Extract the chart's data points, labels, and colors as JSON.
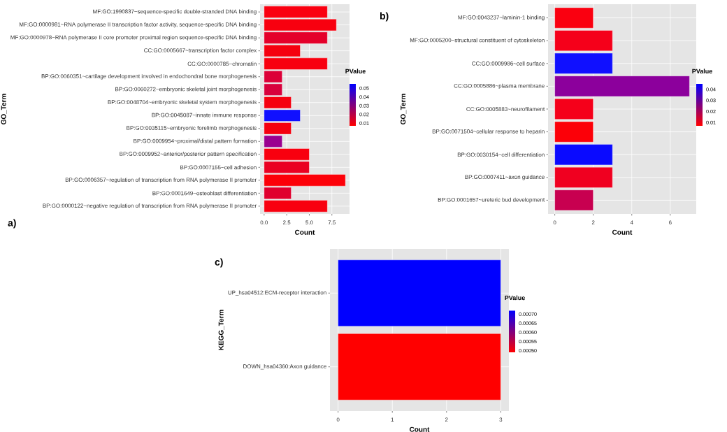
{
  "chart_data": [
    {
      "type": "bar",
      "orientation": "horizontal",
      "title": "a)",
      "xlabel": "Count",
      "ylabel": "GO_Term",
      "clabel": "PValue",
      "categories": [
        "MF:GO:1990837~sequence-specific double-stranded DNA binding",
        "MF:GO:0000981~RNA polymerase II transcription factor activity, sequence-specific DNA binding",
        "MF:GO:0000978~RNA polymerase II core promoter proximal region sequence-specific DNA binding",
        "CC:GO:0005667~transcription factor complex",
        "CC:GO:0000785~chromatin",
        "BP:GO:0060351~cartilage development involved in endochondral bone morphogenesis",
        "BP:GO:0060272~embryonic skeletal joint morphogenesis",
        "BP:GO:0048704~embryonic skeletal system morphogenesis",
        "BP:GO:0045087~innate immune response",
        "BP:GO:0035115~embryonic forelimb morphogenesis",
        "BP:GO:0009954~proximal/distal pattern formation",
        "BP:GO:0009952~anterior/posterior pattern specification",
        "BP:GO:0007155~cell adhesion",
        "BP:GO:0006357~regulation of transcription from RNA polymerase II promoter",
        "BP:GO:0001649~osteoblast differentiation",
        "BP:GO:0000122~negative regulation of transcription from RNA polymerase II promoter"
      ],
      "values": [
        7,
        8,
        7,
        4,
        7,
        2,
        2,
        3,
        4,
        3,
        2,
        5,
        5,
        9,
        3,
        7
      ],
      "colors": [
        "#fa0010",
        "#f8000f",
        "#e4002a",
        "#f5000f",
        "#f8000f",
        "#dc0038",
        "#d8003c",
        "#f5000f",
        "#1010ff",
        "#f5000f",
        "#9a0090",
        "#f8000f",
        "#ea0022",
        "#fc0008",
        "#e0002e",
        "#f8000f"
      ],
      "xlim": [
        -0.45,
        9.45
      ],
      "xticks": [
        {
          "value": 0,
          "label": "0.0"
        },
        2.5,
        {
          "value": 5,
          "label": "5.0"
        },
        7.5
      ],
      "clim": [
        0.007,
        0.055
      ],
      "cticks": [
        0.01,
        0.02,
        0.03,
        0.04,
        0.05
      ],
      "grid": true
    },
    {
      "type": "bar",
      "orientation": "horizontal",
      "title": "b)",
      "xlabel": "Count",
      "ylabel": "GO_Term",
      "clabel": "PValue",
      "categories": [
        "MF:GO:0043237~laminin-1 binding",
        "MF:GO:0005200~structural constituent of cytoskeleton",
        "CC:GO:0009986~cell surface",
        "CC:GO:0005886~plasma membrane",
        "CC:GO:0005883~neurofilament",
        "BP:GO:0071504~cellular response to heparin",
        "BP:GO:0030154~cell differentiation",
        "BP:GO:0007411~axon guidance",
        "BP:GO:0001657~ureteric bud development"
      ],
      "values": [
        2,
        3,
        3,
        7,
        2,
        2,
        3,
        3,
        2
      ],
      "colors": [
        "#fa0010",
        "#f5001a",
        "#1010ff",
        "#8c009c",
        "#f5001a",
        "#fc0008",
        "#0a0aff",
        "#f00020",
        "#c80050"
      ],
      "xlim": [
        -0.35,
        7.35
      ],
      "xticks": [
        0,
        2,
        4,
        6
      ],
      "clim": [
        0.007,
        0.045
      ],
      "cticks": [
        0.01,
        0.02,
        0.03,
        0.04
      ],
      "grid": true
    },
    {
      "type": "bar",
      "orientation": "horizontal",
      "title": "c)",
      "xlabel": "Count",
      "ylabel": "KEGG_Term",
      "clabel": "PValue",
      "categories": [
        "UP_hsa04512:ECM-receptor interaction",
        "DOWN_hsa04360:Axon guidance"
      ],
      "values": [
        3,
        3
      ],
      "colors": [
        "#0000ff",
        "#ff0000"
      ],
      "xlim": [
        -0.15,
        3.15
      ],
      "xticks": [
        0,
        1,
        2,
        3
      ],
      "clim": [
        0.00049,
        0.00072
      ],
      "cticks": [
        {
          "value": 0.0005,
          "label": "0.00050"
        },
        {
          "value": 0.00055,
          "label": "0.00055"
        },
        {
          "value": 0.0006,
          "label": "0.00060"
        },
        {
          "value": 0.00065,
          "label": "0.00065"
        },
        {
          "value": 0.0007,
          "label": "0.00070"
        }
      ],
      "grid": true
    }
  ]
}
